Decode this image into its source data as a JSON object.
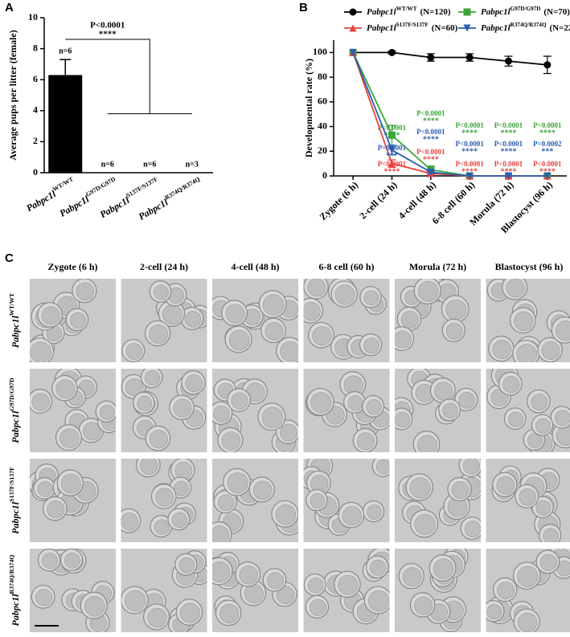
{
  "panels": [
    "A",
    "B",
    "C"
  ],
  "chart_data": [
    {
      "type": "bar",
      "ylabel": "Average pups per litter (female)",
      "categories": [
        {
          "gene": "Pabpc1l",
          "allele": "WT/WT"
        },
        {
          "gene": "Pabpc1l",
          "allele": "G97D/G97D"
        },
        {
          "gene": "Pabpc1l",
          "allele": "S137F/S137F"
        },
        {
          "gene": "Pabpc1l",
          "allele": "R374Q/R374Q"
        }
      ],
      "values": [
        6.3,
        0,
        0,
        0
      ],
      "errors": [
        1.0,
        0,
        0,
        0
      ],
      "n_labels": [
        "n=6",
        "n=6",
        "n=6",
        "n=3"
      ],
      "color": "#000000",
      "ylim": [
        0,
        10
      ],
      "yticks": [
        0,
        2,
        4,
        6,
        8,
        10
      ],
      "significance": {
        "p": "P<0.0001",
        "stars": "****"
      }
    },
    {
      "type": "line",
      "ylabel": "Developmental rate (%)",
      "categories": [
        "Zygote (6 h)",
        "2-cell (24 h)",
        "4-cell (48 h)",
        "6-8 cell (60 h)",
        "Morula (72 h)",
        "Blastocyst (96 h)"
      ],
      "ylim": [
        0,
        110
      ],
      "yticks": [
        0,
        20,
        40,
        60,
        80,
        100
      ],
      "series": [
        {
          "name": {
            "gene": "Pabpc1l",
            "allele": "WT/WT",
            "count": "(N=120)"
          },
          "color": "#000000",
          "marker": "circle",
          "values": [
            100,
            100,
            96,
            96,
            93,
            90
          ],
          "errors": [
            0,
            1,
            3,
            3,
            4,
            7
          ]
        },
        {
          "name": {
            "gene": "Pabpc1l",
            "allele": "G97D/G97D",
            "count": "(N=70)"
          },
          "color": "#3aa63a",
          "marker": "square",
          "values": [
            100,
            33,
            5,
            0,
            0,
            0
          ],
          "errors": [
            0,
            8,
            3,
            0,
            0,
            0
          ],
          "p_labels": [
            null,
            "P<0.0001",
            "P<0.0001",
            "P<0.0001",
            "P<0.0001",
            "P<0.0001"
          ],
          "stars": [
            null,
            "****",
            "****",
            "****",
            "****",
            "****"
          ]
        },
        {
          "name": {
            "gene": "Pabpc1l",
            "allele": "S137F/S137F",
            "count": "(N=60)"
          },
          "color": "#e8423f",
          "marker": "triangle",
          "values": [
            100,
            10,
            2,
            0,
            0,
            0
          ],
          "errors": [
            0,
            3,
            1,
            0,
            0,
            0
          ],
          "p_labels": [
            null,
            "P<0.0001",
            "P<0.0001",
            "P<0.0001",
            "P<0.0001",
            "P<0.0001"
          ],
          "stars": [
            null,
            "****",
            "****",
            "****",
            "****",
            "****"
          ]
        },
        {
          "name": {
            "gene": "Pabpc1l",
            "allele": "R374Q/R374Q",
            "count": "(N=22)"
          },
          "color": "#2a5db0",
          "marker": "triangle-down",
          "values": [
            100,
            21,
            3,
            0,
            0,
            0
          ],
          "errors": [
            0,
            4,
            1,
            0,
            0,
            0
          ],
          "p_labels": [
            null,
            "P=0.0001",
            "P<0.0001",
            "P<0.0001",
            "P<0.0001",
            "P=0.0002"
          ],
          "stars": [
            null,
            "***",
            "****",
            "****",
            "****",
            "***"
          ]
        }
      ]
    }
  ],
  "image_grid": {
    "columns": [
      "Zygote (6 h)",
      "2-cell (24 h)",
      "4-cell (48 h)",
      "6-8 cell (60 h)",
      "Morula (72 h)",
      "Blastocyst (96 h)"
    ],
    "rows": [
      {
        "gene": "Pabpc1l",
        "allele": "WT/WT"
      },
      {
        "gene": "Pabpc1l",
        "allele": "G97D/G97D"
      },
      {
        "gene": "Pabpc1l",
        "allele": "S137F/S137F"
      },
      {
        "gene": "Pabpc1l",
        "allele": "R374Q/R374Q"
      }
    ]
  }
}
